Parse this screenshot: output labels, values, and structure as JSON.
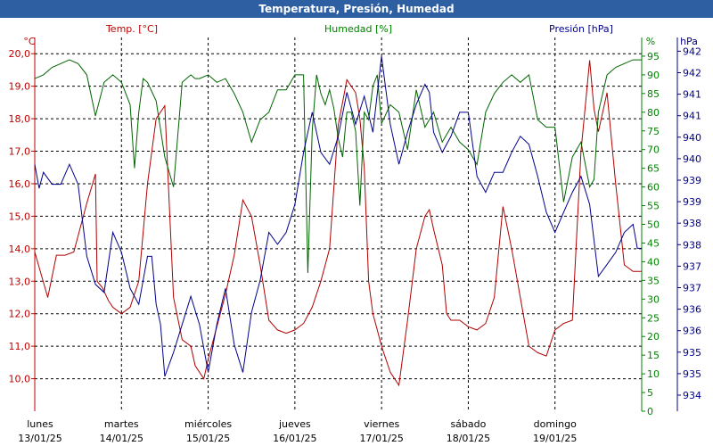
{
  "chart_data": {
    "type": "line",
    "title": "Temperatura, Presión, Humedad",
    "x_labels": [
      {
        "day": "lunes",
        "date": "13/01/25"
      },
      {
        "day": "martes",
        "date": "14/01/25"
      },
      {
        "day": "miércoles",
        "date": "15/01/25"
      },
      {
        "day": "jueves",
        "date": "16/01/25"
      },
      {
        "day": "viernes",
        "date": "17/01/25"
      },
      {
        "day": "sábado",
        "date": "18/01/25"
      },
      {
        "day": "domingo",
        "date": "19/01/25"
      }
    ],
    "xlim": [
      0,
      7
    ],
    "axes": {
      "temp": {
        "label": "Temp. [°C]",
        "unit": "°C",
        "min": 9.0,
        "max": 20.5,
        "ticks": [
          "10,0",
          "11,0",
          "12,0",
          "13,0",
          "14,0",
          "15,0",
          "16,0",
          "17,0",
          "18,0",
          "19,0",
          "20,0"
        ],
        "color": "#c00000"
      },
      "hum": {
        "label": "Humedad [%]",
        "unit": "%",
        "min": 0,
        "max": 100,
        "ticks": [
          "0",
          "5",
          "10",
          "15",
          "20",
          "25",
          "30",
          "35",
          "40",
          "45",
          "50",
          "55",
          "60",
          "65",
          "70",
          "75",
          "80",
          "85",
          "90",
          "95"
        ],
        "color": "#008000"
      },
      "pres": {
        "label": "Presión [hPa]",
        "unit": "hPa",
        "min": 933.33,
        "max": 942.67,
        "ticks": [
          "934",
          "935",
          "935",
          "936",
          "936",
          "937",
          "937",
          "938",
          "938",
          "939",
          "939",
          "940",
          "940",
          "941",
          "941",
          "942",
          "942"
        ],
        "color": "#00008b"
      }
    },
    "series": [
      {
        "name": "Temp. [°C]",
        "axis": "temp",
        "color": "#b00000",
        "x": [
          0,
          0.15,
          0.25,
          0.35,
          0.45,
          0.6,
          0.7,
          0.72,
          0.78,
          0.85,
          0.9,
          1.0,
          1.1,
          1.2,
          1.3,
          1.4,
          1.5,
          1.6,
          1.7,
          1.8,
          1.85,
          1.95,
          2.0,
          2.1,
          2.2,
          2.3,
          2.4,
          2.5,
          2.6,
          2.7,
          2.8,
          2.9,
          3.0,
          3.1,
          3.2,
          3.3,
          3.4,
          3.5,
          3.6,
          3.7,
          3.75,
          3.8,
          3.85,
          3.9,
          3.95,
          4.0,
          4.1,
          4.2,
          4.3,
          4.4,
          4.5,
          4.55,
          4.6,
          4.7,
          4.75,
          4.8,
          4.9,
          5.0,
          5.1,
          5.2,
          5.3,
          5.4,
          5.5,
          5.6,
          5.7,
          5.8,
          5.9,
          6.0,
          6.1,
          6.2,
          6.3,
          6.4,
          6.45,
          6.5,
          6.6,
          6.7,
          6.8,
          6.9,
          7.0
        ],
        "y": [
          13.9,
          12.5,
          13.8,
          13.8,
          13.9,
          15.4,
          16.3,
          13.0,
          12.8,
          12.4,
          12.2,
          12.0,
          12.2,
          13.0,
          16.0,
          18.0,
          18.4,
          12.5,
          11.2,
          11.0,
          10.4,
          10.0,
          10.6,
          11.6,
          12.6,
          13.8,
          15.5,
          15.0,
          13.5,
          11.8,
          11.5,
          11.4,
          11.5,
          11.7,
          12.2,
          13.0,
          14.0,
          17.8,
          19.2,
          18.8,
          18.0,
          16.5,
          13.0,
          12.0,
          11.5,
          11.0,
          10.2,
          9.8,
          11.8,
          14.0,
          15.0,
          15.2,
          14.6,
          13.5,
          12.0,
          11.8,
          11.8,
          11.6,
          11.5,
          11.7,
          12.5,
          15.3,
          14.0,
          12.5,
          11.0,
          10.8,
          10.7,
          11.5,
          11.7,
          11.8,
          17.0,
          19.8,
          18.3,
          17.6,
          18.8,
          16.0,
          13.5,
          13.3,
          13.3
        ]
      },
      {
        "name": "Humedad [%]",
        "axis": "hum",
        "color": "#006400",
        "x": [
          0,
          0.1,
          0.2,
          0.3,
          0.4,
          0.5,
          0.6,
          0.7,
          0.8,
          0.9,
          1.0,
          1.1,
          1.15,
          1.2,
          1.25,
          1.3,
          1.4,
          1.5,
          1.6,
          1.7,
          1.8,
          1.85,
          1.9,
          2.0,
          2.1,
          2.2,
          2.3,
          2.4,
          2.5,
          2.6,
          2.7,
          2.8,
          2.9,
          3.0,
          3.1,
          3.15,
          3.2,
          3.25,
          3.3,
          3.35,
          3.4,
          3.45,
          3.5,
          3.55,
          3.6,
          3.65,
          3.7,
          3.75,
          3.8,
          3.85,
          3.9,
          3.95,
          4.0,
          4.1,
          4.2,
          4.3,
          4.4,
          4.5,
          4.6,
          4.7,
          4.8,
          4.9,
          5.0,
          5.1,
          5.2,
          5.3,
          5.4,
          5.5,
          5.6,
          5.7,
          5.8,
          5.9,
          6.0,
          6.1,
          6.2,
          6.3,
          6.4,
          6.45,
          6.5,
          6.6,
          6.7,
          6.8,
          6.9,
          7.0
        ],
        "y": [
          89,
          90,
          92,
          93,
          94,
          93,
          90,
          79,
          88,
          90,
          88,
          82,
          65,
          80,
          89,
          88,
          83,
          68,
          60,
          88,
          90,
          89,
          89,
          90,
          88,
          89,
          85,
          80,
          72,
          78,
          80,
          86,
          86,
          90,
          90,
          37,
          75,
          90,
          85,
          82,
          86,
          81,
          73,
          68,
          80,
          80,
          75,
          55,
          80,
          78,
          87,
          90,
          77,
          82,
          80,
          70,
          86,
          76,
          80,
          72,
          76,
          72,
          70,
          66,
          80,
          85,
          88,
          90,
          88,
          90,
          78,
          76,
          76,
          56,
          68,
          72,
          60,
          62,
          80,
          90,
          92,
          93,
          94,
          94
        ]
      },
      {
        "name": "Presión [hPa]",
        "axis": "pres",
        "color": "#00008b",
        "x": [
          0,
          0.05,
          0.1,
          0.2,
          0.3,
          0.4,
          0.5,
          0.6,
          0.7,
          0.8,
          0.9,
          1.0,
          1.1,
          1.2,
          1.3,
          1.35,
          1.4,
          1.45,
          1.5,
          1.6,
          1.7,
          1.8,
          1.9,
          2.0,
          2.1,
          2.2,
          2.3,
          2.4,
          2.5,
          2.6,
          2.7,
          2.8,
          2.9,
          3.0,
          3.1,
          3.2,
          3.3,
          3.4,
          3.5,
          3.6,
          3.7,
          3.8,
          3.9,
          4.0,
          4.1,
          4.2,
          4.3,
          4.4,
          4.5,
          4.55,
          4.6,
          4.7,
          4.8,
          4.9,
          5.0,
          5.1,
          5.2,
          5.3,
          5.4,
          5.5,
          5.6,
          5.7,
          5.8,
          5.9,
          6.0,
          6.1,
          6.2,
          6.3,
          6.4,
          6.5,
          6.6,
          6.7,
          6.8,
          6.9,
          6.95,
          7.0
        ],
        "y": [
          939.5,
          938.9,
          939.3,
          939.0,
          939.0,
          939.5,
          939.0,
          937.2,
          936.5,
          936.3,
          937.8,
          937.3,
          936.4,
          936.0,
          937.2,
          937.2,
          936.0,
          935.5,
          934.2,
          934.8,
          935.5,
          936.2,
          935.5,
          934.3,
          935.5,
          936.4,
          935.0,
          934.3,
          935.8,
          936.6,
          937.8,
          937.5,
          937.8,
          938.5,
          939.8,
          940.8,
          939.8,
          939.5,
          940.2,
          941.3,
          940.5,
          941.2,
          940.3,
          942.2,
          940.5,
          939.5,
          940.3,
          941.0,
          941.5,
          941.3,
          940.3,
          939.8,
          940.2,
          940.8,
          940.8,
          939.2,
          938.8,
          939.3,
          939.3,
          939.8,
          940.2,
          940.0,
          939.2,
          938.3,
          937.8,
          938.3,
          938.8,
          939.2,
          938.5,
          936.7,
          937.0,
          937.3,
          937.8,
          938.0,
          937.4,
          937.4
        ]
      }
    ]
  }
}
